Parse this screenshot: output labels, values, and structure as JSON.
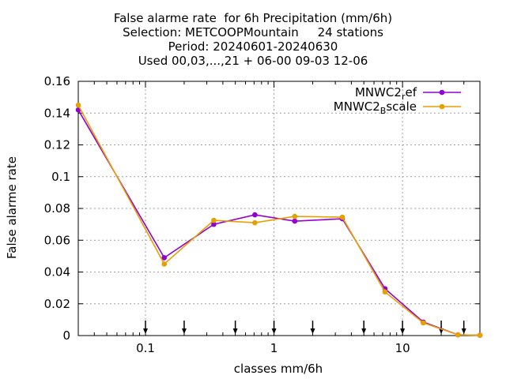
{
  "title_lines": [
    "False alarme rate  for 6h Precipitation (mm/6h)",
    "Selection: METCOOPMountain     24 stations",
    "Period: 20240601-20240630",
    "Used 00,03,...,21 + 06-00 09-03 12-06"
  ],
  "chart_data": {
    "type": "line",
    "xlabel": "classes mm/6h",
    "ylabel": "False alarme rate",
    "xscale": "log",
    "xlim": [
      0.03,
      40
    ],
    "ylim": [
      0,
      0.16
    ],
    "xticks": [
      0.1,
      1,
      10
    ],
    "xtick_labels": [
      "0.1",
      "1",
      "10"
    ],
    "yticks": [
      0,
      0.02,
      0.04,
      0.06,
      0.08,
      0.1,
      0.12,
      0.14,
      0.16
    ],
    "ytick_labels": [
      "0",
      "0.02",
      "0.04",
      "0.06",
      "0.08",
      "0.1",
      "0.12",
      "0.14",
      "0.16"
    ],
    "grid": true,
    "legend_position": "top-right",
    "threshold_arrows": [
      0.1,
      0.2,
      0.5,
      1,
      2,
      5,
      10,
      20,
      30
    ],
    "series": [
      {
        "name": "MNWC2_ref",
        "legend_main": "MNWC2",
        "legend_sub": "r",
        "legend_rest": "ef",
        "color": "#9400d3",
        "x": [
          0.03,
          0.14,
          0.34,
          0.71,
          1.45,
          3.4,
          7.3,
          14.5,
          27,
          40
        ],
        "y": [
          0.142,
          0.049,
          0.07,
          0.076,
          0.072,
          0.0735,
          0.0295,
          0.0085,
          0.0005,
          0.0002
        ]
      },
      {
        "name": "MNWC2_Bscale",
        "legend_main": "MNWC2",
        "legend_sub": "B",
        "legend_rest": "scale",
        "color": "#e6a000",
        "x": [
          0.03,
          0.14,
          0.34,
          0.71,
          1.45,
          3.4,
          7.3,
          14.5,
          27,
          40
        ],
        "y": [
          0.145,
          0.045,
          0.0725,
          0.071,
          0.075,
          0.0745,
          0.0275,
          0.008,
          0.0005,
          0.0002
        ]
      }
    ]
  }
}
